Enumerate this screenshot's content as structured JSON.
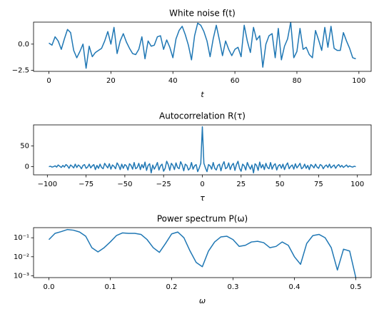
{
  "chart_data": [
    {
      "type": "line",
      "title": "White noise f(t)",
      "xlabel": "t",
      "color": "#1f77b4",
      "x": [
        0,
        1,
        2,
        3,
        4,
        5,
        6,
        7,
        8,
        9,
        10,
        11,
        12,
        13,
        14,
        15,
        16,
        17,
        18,
        19,
        20,
        21,
        22,
        23,
        24,
        25,
        26,
        27,
        28,
        29,
        30,
        31,
        32,
        33,
        34,
        35,
        36,
        37,
        38,
        39,
        40,
        41,
        42,
        43,
        44,
        45,
        46,
        47,
        48,
        49,
        50,
        51,
        52,
        53,
        54,
        55,
        56,
        57,
        58,
        59,
        60,
        61,
        62,
        63,
        64,
        65,
        66,
        67,
        68,
        69,
        70,
        71,
        72,
        73,
        74,
        75,
        76,
        77,
        78,
        79,
        80,
        81,
        82,
        83,
        84,
        85,
        86,
        87,
        88,
        89,
        90,
        91,
        92,
        93,
        94,
        95,
        96,
        97,
        98,
        99
      ],
      "values": [
        0.1,
        -0.1,
        0.7,
        0.3,
        -0.5,
        0.5,
        1.4,
        1.1,
        -0.6,
        -1.3,
        -0.7,
        0.0,
        -2.3,
        -0.2,
        -1.2,
        -0.8,
        -0.6,
        -0.4,
        0.3,
        1.2,
        0.0,
        1.6,
        -0.9,
        0.3,
        1.0,
        0.2,
        -0.4,
        -0.9,
        -1.0,
        -0.5,
        0.7,
        -1.4,
        0.3,
        -0.2,
        -0.1,
        0.7,
        0.8,
        -0.5,
        0.4,
        -0.3,
        -1.3,
        0.5,
        1.3,
        1.7,
        0.9,
        -0.1,
        -1.5,
        0.8,
        2.0,
        1.8,
        1.2,
        0.3,
        -1.2,
        0.5,
        1.8,
        0.4,
        -1.1,
        0.3,
        -0.5,
        -1.1,
        -0.5,
        -0.3,
        -1.2,
        1.8,
        0.3,
        -0.8,
        1.6,
        0.4,
        0.8,
        -2.2,
        0.0,
        0.8,
        1.0,
        -1.3,
        1.5,
        -1.5,
        -0.2,
        0.5,
        2.1,
        -1.3,
        -0.7,
        1.5,
        -0.5,
        -0.3,
        -1.0,
        -1.3,
        1.3,
        0.4,
        -0.6,
        1.6,
        -0.3,
        1.7,
        -0.4,
        -0.6,
        -0.6,
        1.1,
        0.3,
        -0.4,
        -1.3,
        -1.4
      ],
      "xlim": [
        -4.95,
        103.95
      ],
      "xticks": [
        0,
        20,
        40,
        60,
        80,
        100
      ],
      "ylim": [
        -2.6,
        2.1
      ],
      "yticks": [
        {
          "value": -2.5,
          "label": "−2.5"
        },
        {
          "value": 0,
          "label": "0.0"
        }
      ]
    },
    {
      "type": "line",
      "title": "Autocorrelation R(τ)",
      "xlabel": "τ",
      "color": "#1f77b4",
      "x": [
        -99,
        -98,
        -97,
        -96,
        -95,
        -94,
        -93,
        -92,
        -91,
        -90,
        -89,
        -88,
        -87,
        -86,
        -85,
        -84,
        -83,
        -82,
        -81,
        -80,
        -79,
        -78,
        -77,
        -76,
        -75,
        -74,
        -73,
        -72,
        -71,
        -70,
        -69,
        -68,
        -67,
        -66,
        -65,
        -64,
        -63,
        -62,
        -61,
        -60,
        -59,
        -58,
        -57,
        -56,
        -55,
        -54,
        -53,
        -52,
        -51,
        -50,
        -49,
        -48,
        -47,
        -46,
        -45,
        -44,
        -43,
        -42,
        -41,
        -40,
        -39,
        -38,
        -37,
        -36,
        -35,
        -34,
        -33,
        -32,
        -31,
        -30,
        -29,
        -28,
        -27,
        -26,
        -25,
        -24,
        -23,
        -22,
        -21,
        -20,
        -19,
        -18,
        -17,
        -16,
        -15,
        -14,
        -13,
        -12,
        -11,
        -10,
        -9,
        -8,
        -7,
        -6,
        -5,
        -4,
        -3,
        -2,
        -1,
        0,
        1,
        2,
        3,
        4,
        5,
        6,
        7,
        8,
        9,
        10,
        11,
        12,
        13,
        14,
        15,
        16,
        17,
        18,
        19,
        20,
        21,
        22,
        23,
        24,
        25,
        26,
        27,
        28,
        29,
        30,
        31,
        32,
        33,
        34,
        35,
        36,
        37,
        38,
        39,
        40,
        41,
        42,
        43,
        44,
        45,
        46,
        47,
        48,
        49,
        50,
        51,
        52,
        53,
        54,
        55,
        56,
        57,
        58,
        59,
        60,
        61,
        62,
        63,
        64,
        65,
        66,
        67,
        68,
        69,
        70,
        71,
        72,
        73,
        74,
        75,
        76,
        77,
        78,
        79,
        80,
        81,
        82,
        83,
        84,
        85,
        86,
        87,
        88,
        89,
        90,
        91,
        92,
        93,
        94,
        95,
        96,
        97,
        98,
        99
      ],
      "values": [
        0,
        1,
        -1,
        0,
        2,
        -1,
        4,
        1,
        -2,
        3,
        -1,
        5,
        2,
        -4,
        4,
        1,
        -3,
        6,
        -2,
        4,
        1,
        -5,
        3,
        5,
        -4,
        -1,
        6,
        -3,
        2,
        5,
        -7,
        3,
        -4,
        6,
        -2,
        -5,
        8,
        2,
        -3,
        7,
        -6,
        4,
        1,
        -5,
        9,
        3,
        -7,
        6,
        -4,
        5,
        2,
        -8,
        7,
        3,
        -6,
        10,
        -5,
        -2,
        8,
        -7,
        5,
        -3,
        11,
        -9,
        3,
        7,
        -15,
        4,
        -6,
        1,
        10,
        -8,
        2,
        6,
        -11,
        -4,
        13,
        5,
        -9,
        8,
        3,
        -7,
        9,
        -2,
        -5,
        12,
        4,
        -10,
        6,
        3,
        -8,
        -4,
        10,
        -6,
        2,
        5,
        -12,
        -3,
        8,
        96,
        8,
        -3,
        -12,
        5,
        2,
        -6,
        10,
        -4,
        -8,
        3,
        6,
        -10,
        4,
        12,
        -5,
        -2,
        9,
        -7,
        3,
        8,
        -9,
        5,
        13,
        -4,
        -11,
        6,
        2,
        -8,
        10,
        1,
        -6,
        4,
        -15,
        7,
        3,
        -9,
        11,
        -3,
        5,
        -7,
        8,
        -2,
        -5,
        10,
        -6,
        3,
        7,
        -8,
        2,
        5,
        -4,
        6,
        -7,
        3,
        9,
        -5,
        1,
        4,
        -6,
        7,
        -3,
        2,
        8,
        -5,
        -2,
        6,
        -4,
        3,
        -7,
        5,
        2,
        -3,
        6,
        -1,
        -4,
        5,
        3,
        -5,
        1,
        4,
        -2,
        6,
        -3,
        1,
        4,
        -4,
        2,
        5,
        -1,
        3,
        -2,
        1,
        4,
        -1,
        2,
        0,
        -1,
        1,
        0
      ],
      "xlim": [
        -108.9,
        108.9
      ],
      "xticks": [
        {
          "value": -100,
          "label": "−100"
        },
        {
          "value": -75,
          "label": "−75"
        },
        {
          "value": -50,
          "label": "−50"
        },
        {
          "value": -25,
          "label": "−25"
        },
        0,
        25,
        50,
        75,
        100
      ],
      "ylim": [
        -19.7,
        100.6
      ],
      "yticks": [
        0,
        50
      ]
    },
    {
      "type": "line",
      "title": "Power spectrum P(ω)",
      "xlabel": "ω",
      "color": "#1f77b4",
      "yscale": "log",
      "x": [
        0,
        0.01,
        0.02,
        0.03,
        0.04,
        0.05,
        0.06,
        0.07,
        0.08,
        0.09,
        0.1,
        0.11,
        0.12,
        0.13,
        0.14,
        0.15,
        0.16,
        0.17,
        0.18,
        0.19,
        0.2,
        0.21,
        0.22,
        0.23,
        0.24,
        0.25,
        0.26,
        0.27,
        0.28,
        0.29,
        0.3,
        0.31,
        0.32,
        0.33,
        0.34,
        0.35,
        0.36,
        0.37,
        0.38,
        0.39,
        0.4,
        0.41,
        0.42,
        0.43,
        0.44,
        0.45,
        0.46,
        0.47,
        0.48,
        0.49,
        0.5
      ],
      "values": [
        0.08,
        0.17,
        0.21,
        0.27,
        0.25,
        0.2,
        0.12,
        0.03,
        0.018,
        0.03,
        0.06,
        0.13,
        0.18,
        0.17,
        0.17,
        0.15,
        0.08,
        0.03,
        0.017,
        0.05,
        0.16,
        0.2,
        0.1,
        0.02,
        0.005,
        0.003,
        0.02,
        0.06,
        0.11,
        0.12,
        0.08,
        0.035,
        0.04,
        0.06,
        0.065,
        0.055,
        0.03,
        0.035,
        0.06,
        0.04,
        0.01,
        0.004,
        0.05,
        0.13,
        0.15,
        0.1,
        0.03,
        0.002,
        0.025,
        0.02,
        0.0008
      ],
      "xlim": [
        -0.025,
        0.525
      ],
      "xticks": [
        {
          "value": 0,
          "label": "0.0"
        },
        0.1,
        0.2,
        0.3,
        0.4,
        0.5
      ],
      "ylim": [
        0.0008,
        0.34
      ],
      "yticks": [
        {
          "value": 0.001,
          "label": "10⁻³"
        },
        {
          "value": 0.01,
          "label": "10⁻²"
        },
        {
          "value": 0.1,
          "label": "10⁻¹"
        }
      ]
    }
  ]
}
